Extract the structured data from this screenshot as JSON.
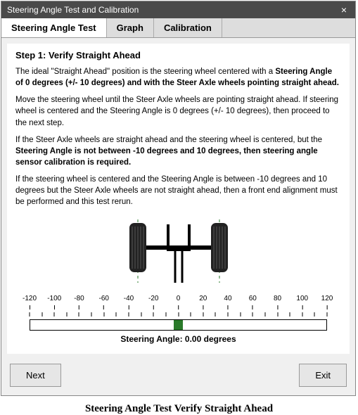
{
  "window": {
    "title": "Steering Angle Test and Calibration",
    "close": "×"
  },
  "tabs": [
    {
      "label": "Steering Angle Test",
      "active": true
    },
    {
      "label": "Graph",
      "active": false
    },
    {
      "label": "Calibration",
      "active": false
    }
  ],
  "step": {
    "title": "Step 1: Verify Straight Ahead"
  },
  "paras": {
    "p1a": "The ideal \"Straight Ahead\" position is the steering wheel centered with a ",
    "p1b": "Steering Angle of 0 degrees (+/- 10 degrees) and with the Steer Axle wheels pointing straight ahead.",
    "p2": "Move the steering wheel until the Steer Axle wheels are pointing straight ahead. If steering wheel is centered and the Steering Angle is 0 degrees (+/- 10 degrees), then proceed to the next step.",
    "p3a": "If the Steer Axle wheels are straight ahead and the steering wheel is centered, but the ",
    "p3b": "Steering Angle is not between -10 degrees and 10 degrees, then steering angle sensor calibration is required.",
    "p4": "If the steering wheel is centered and the Steering Angle is between -10 degrees and 10 degrees but the Steer Axle wheels are not straight ahead, then a front end alignment must be performed and this test rerun."
  },
  "scale": {
    "min": -120,
    "max": 120,
    "step": 20,
    "bar_fill_color": "#2a7a2a",
    "fill_left_pct": 48.5,
    "fill_width_pct": 3.0
  },
  "angle": {
    "prefix": "Steering Angle: ",
    "value": "0.00",
    "suffix": " degrees"
  },
  "buttons": {
    "next": "Next",
    "exit": "Exit"
  },
  "caption": "Steering Angle Test Verify Straight Ahead"
}
